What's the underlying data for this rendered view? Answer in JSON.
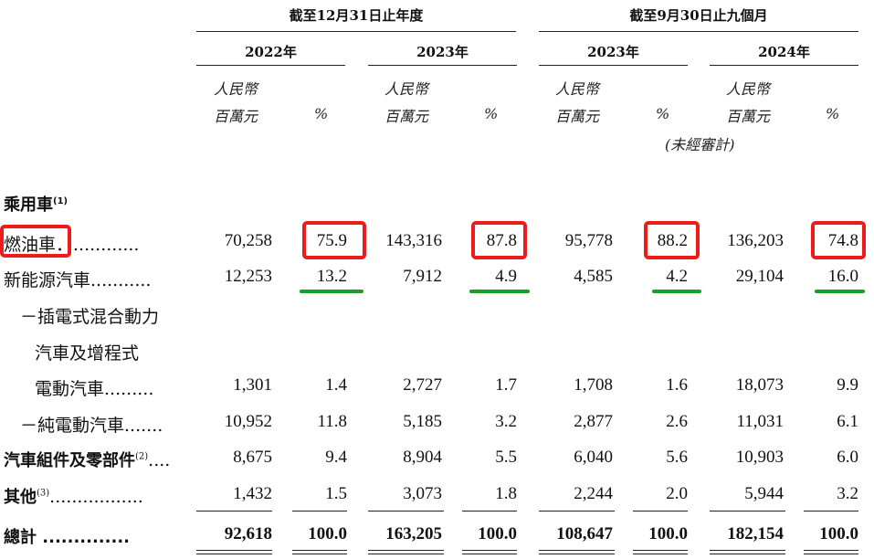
{
  "period_headers": {
    "year_end": "截至12月31日止年度",
    "nine_months": "截至9月30日止九個月"
  },
  "years": [
    "2022年",
    "2023年",
    "2023年",
    "2024年"
  ],
  "units": {
    "currency_line1": "人民幣",
    "currency_line2": "百萬元",
    "percent": "%",
    "unaudited": "(未經審計)"
  },
  "section_title": {
    "text": "乘用車",
    "note": "(1)"
  },
  "rows": [
    {
      "label": "燃油車．............",
      "values": [
        "70,258",
        "75.9",
        "143,316",
        "87.8",
        "95,778",
        "88.2",
        "136,203",
        "74.8"
      ]
    },
    {
      "label": "新能源汽車...........",
      "values": [
        "12,253",
        "13.2",
        "7,912",
        "4.9",
        "4,585",
        "4.2",
        "29,104",
        "16.0"
      ]
    },
    {
      "label_line1": "－插電式混合動力",
      "label_line2": "汽車及增程式",
      "label_line3": "電動汽車.........",
      "values": [
        "1,301",
        "1.4",
        "2,727",
        "1.7",
        "1,708",
        "1.6",
        "18,073",
        "9.9"
      ]
    },
    {
      "label": "－純電動汽車.......",
      "values": [
        "10,952",
        "11.8",
        "5,185",
        "3.2",
        "2,877",
        "2.6",
        "11,031",
        "6.1"
      ]
    },
    {
      "label": "汽車組件及零部件",
      "note": "(2)",
      "dots": "....",
      "values": [
        "8,675",
        "9.4",
        "8,904",
        "5.5",
        "6,040",
        "5.6",
        "10,903",
        "6.0"
      ]
    },
    {
      "label": "其他",
      "note": "(3)",
      "dots": ".................",
      "values": [
        "1,432",
        "1.5",
        "3,073",
        "1.8",
        "2,244",
        "2.0",
        "5,944",
        "3.2"
      ]
    }
  ],
  "total": {
    "label": "總計 ..............",
    "values": [
      "92,618",
      "100.0",
      "163,205",
      "100.0",
      "108,647",
      "100.0",
      "182,154",
      "100.0"
    ]
  },
  "annotation_colors": {
    "highlight_box": "#ee1b1b",
    "underline": "#18a024"
  }
}
